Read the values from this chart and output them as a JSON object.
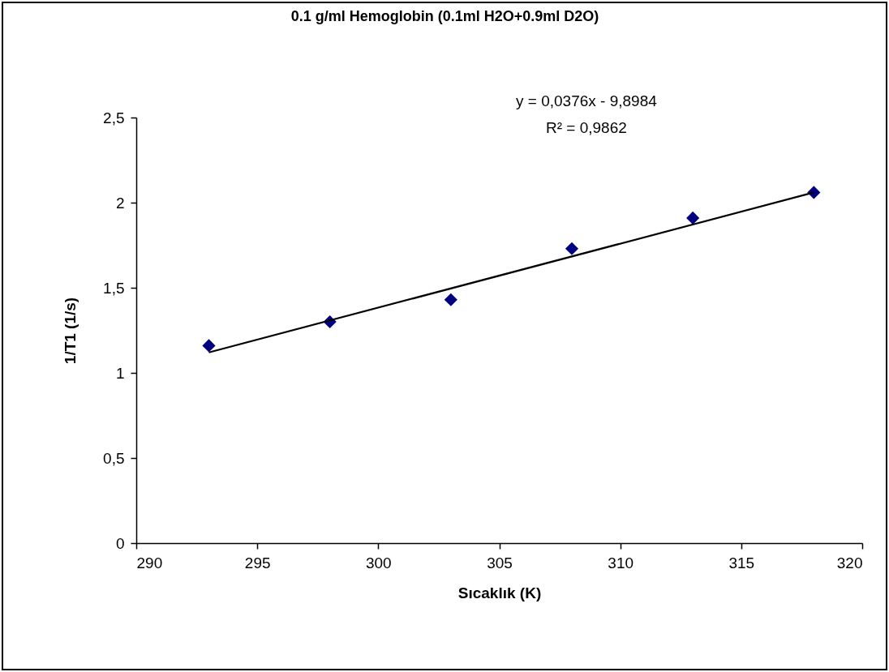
{
  "chart_data": {
    "type": "scatter",
    "title": "0.1 g/ml Hemoglobin (0.1ml H2O+0.9ml D2O)",
    "xlabel": "Sıcaklık (K)",
    "ylabel": "1/T1 (1/s)",
    "x": [
      293,
      298,
      303,
      308,
      313,
      318
    ],
    "series": [
      {
        "color": "#000080",
        "marker": "diamond",
        "values": [
          1.16,
          1.3,
          1.43,
          1.73,
          1.91,
          2.06
        ]
      },
      {
        "type": "line",
        "color": "#000000",
        "marker": "none",
        "x": [
          293,
          318
        ],
        "values": [
          1.12,
          2.06
        ]
      }
    ],
    "grid": false,
    "xlim": [
      290,
      320
    ],
    "xticks": [
      290,
      295,
      300,
      305,
      310,
      315,
      320
    ],
    "ylim": [
      0,
      2.5
    ],
    "yticks": [
      0,
      {
        "value": 0.5,
        "label": "0,5"
      },
      1,
      {
        "value": 1.5,
        "label": "1,5"
      },
      2,
      {
        "value": 2.5,
        "label": "2,5"
      }
    ],
    "annotations": [
      "y = 0,0376x - 9,8984",
      "R² = 0,9862"
    ]
  }
}
